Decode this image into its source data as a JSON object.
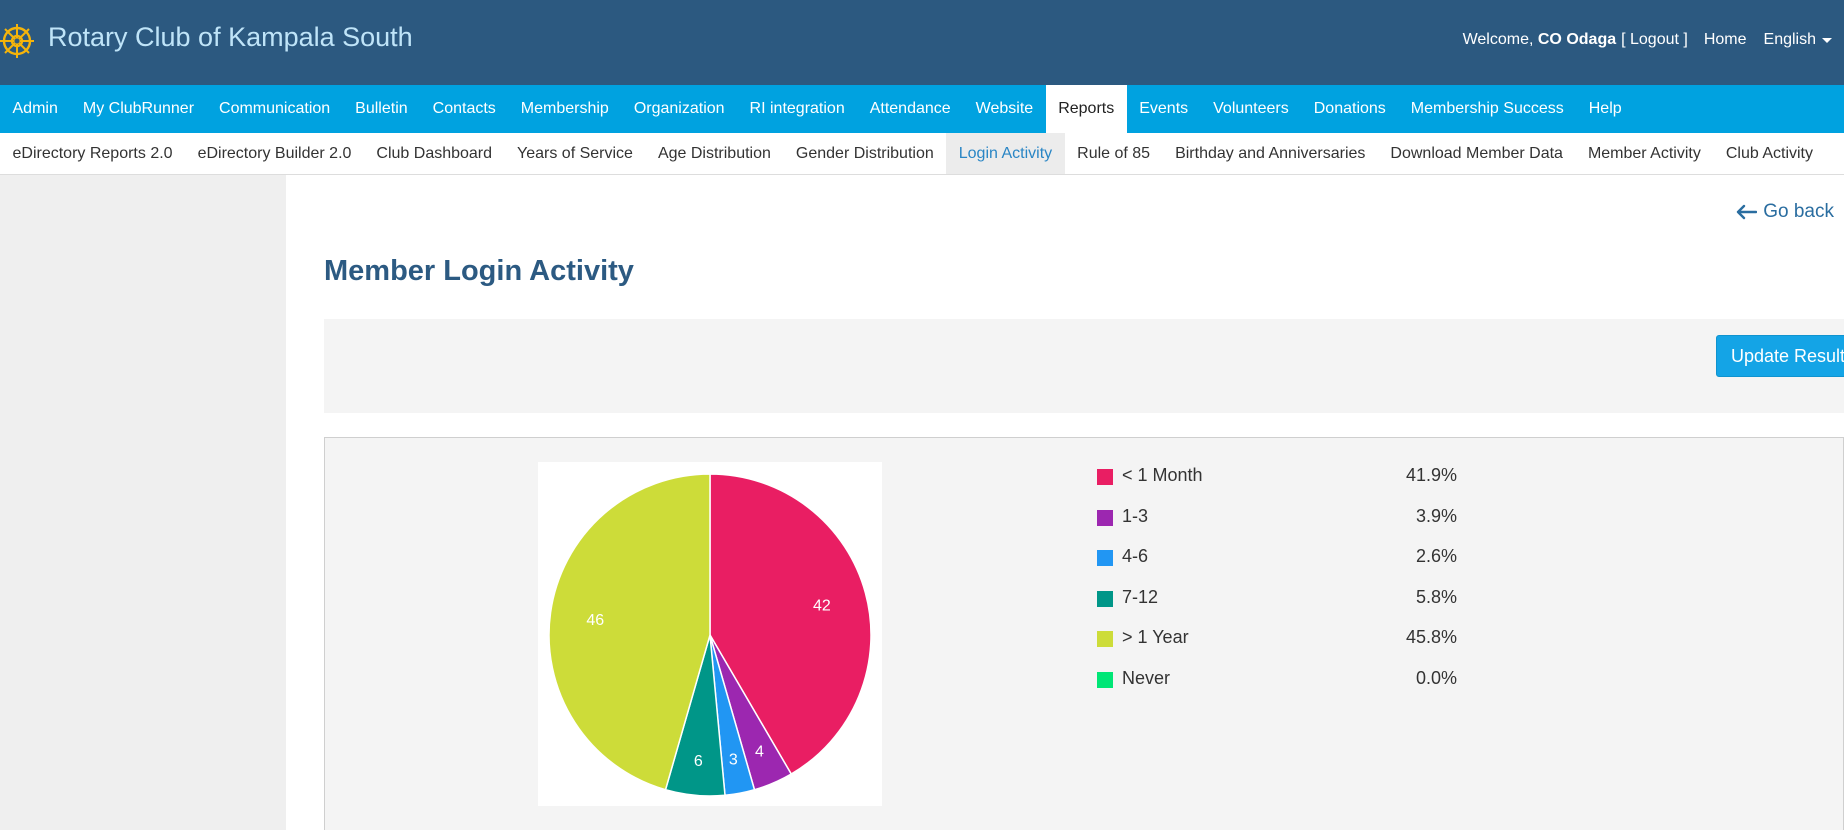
{
  "header": {
    "club_name": "Rotary Club of Kampala South",
    "welcome_prefix": "Welcome,",
    "user_name": "CO Odaga",
    "logout_label": "[ Logout ]",
    "home_label": "Home",
    "language_label": "English"
  },
  "main_nav": [
    {
      "label": "Admin"
    },
    {
      "label": "My ClubRunner"
    },
    {
      "label": "Communication"
    },
    {
      "label": "Bulletin"
    },
    {
      "label": "Contacts"
    },
    {
      "label": "Membership"
    },
    {
      "label": "Organization"
    },
    {
      "label": "RI integration"
    },
    {
      "label": "Attendance"
    },
    {
      "label": "Website"
    },
    {
      "label": "Reports",
      "active": true
    },
    {
      "label": "Events"
    },
    {
      "label": "Volunteers"
    },
    {
      "label": "Donations"
    },
    {
      "label": "Membership Success"
    },
    {
      "label": "Help"
    }
  ],
  "sub_nav": [
    {
      "label": "eDirectory Reports 2.0"
    },
    {
      "label": "eDirectory Builder 2.0"
    },
    {
      "label": "Club Dashboard"
    },
    {
      "label": "Years of Service"
    },
    {
      "label": "Age Distribution"
    },
    {
      "label": "Gender Distribution"
    },
    {
      "label": "Login Activity",
      "active": true
    },
    {
      "label": "Rule of 85"
    },
    {
      "label": "Birthday and Anniversaries"
    },
    {
      "label": "Download Member Data"
    },
    {
      "label": "Member Activity"
    },
    {
      "label": "Club Activity"
    }
  ],
  "page": {
    "go_back_label": "Go back",
    "title": "Member Login Activity",
    "update_button_label": "Update Results"
  },
  "colors": {
    "header_bg": "#2c5980",
    "nav_bg": "#00a2e0",
    "title": "#2c5a82",
    "button": "#14a4e6"
  },
  "chart_data": {
    "type": "pie",
    "title": "",
    "slices": [
      {
        "label": "< 1 Month",
        "value": 42,
        "percent": "41.9%",
        "color": "#e91e63"
      },
      {
        "label": "1-3",
        "value": 4,
        "percent": "3.9%",
        "color": "#9c27b0"
      },
      {
        "label": "4-6",
        "value": 3,
        "percent": "2.6%",
        "color": "#2196f3"
      },
      {
        "label": "7-12",
        "value": 6,
        "percent": "5.8%",
        "color": "#009688"
      },
      {
        "label": "> 1 Year",
        "value": 46,
        "percent": "45.8%",
        "color": "#cddc39"
      },
      {
        "label": "Never",
        "value": 0,
        "percent": "0.0%",
        "color": "#00e676"
      }
    ],
    "legend_position": "right"
  }
}
